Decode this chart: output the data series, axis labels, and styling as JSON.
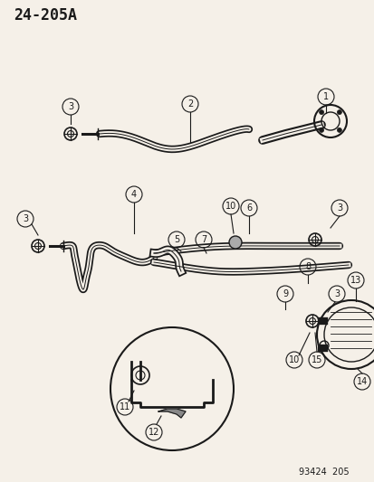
{
  "title": "24-205A",
  "footer": "93424  205",
  "bg_color": "#f5f0e8",
  "line_color": "#1a1a1a",
  "label_color": "#1a1a1a",
  "figsize": [
    4.14,
    5.33
  ],
  "dpi": 100
}
